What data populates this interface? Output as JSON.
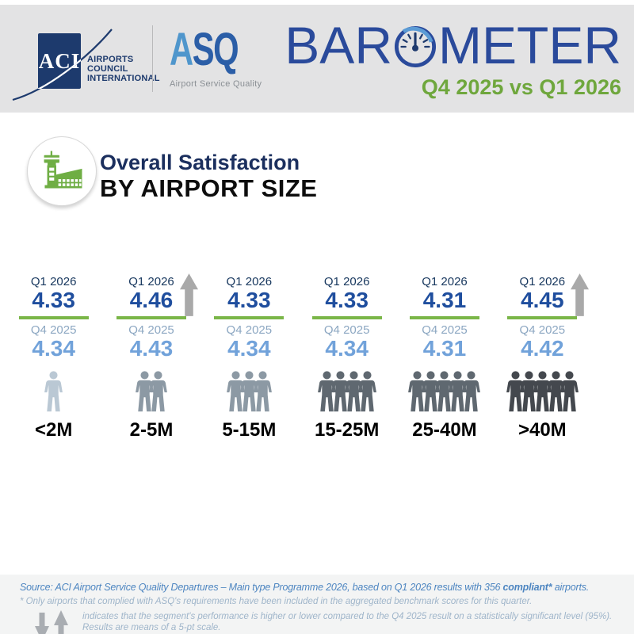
{
  "header": {
    "aci_logo": {
      "acronym": "ACI",
      "lines": [
        "AIRPORTS",
        "COUNCIL",
        "INTERNATIONAL"
      ]
    },
    "asq_logo": {
      "letter_a": "A",
      "letters_sq": "SQ",
      "tagline": "Airport Service Quality"
    },
    "title_prefix": "BAR",
    "title_suffix": "METER",
    "subtitle": "Q4 2025 vs Q1 2026"
  },
  "section": {
    "title_line1": "Overall Satisfaction",
    "title_line2": "BY AIRPORT SIZE"
  },
  "chart_data": {
    "type": "table",
    "title": "Overall Satisfaction BY AIRPORT SIZE",
    "comparison": "Q4 2025 vs Q1 2026",
    "categories": [
      "<2M",
      "2-5M",
      "5-15M",
      "15-25M",
      "25-40M",
      ">40M"
    ],
    "series": [
      {
        "name": "Q1 2026",
        "values": [
          4.33,
          4.46,
          4.33,
          4.33,
          4.31,
          4.45
        ]
      },
      {
        "name": "Q4 2025",
        "values": [
          4.34,
          4.43,
          4.34,
          4.34,
          4.31,
          4.42
        ]
      }
    ],
    "significant_up": [
      false,
      true,
      false,
      false,
      false,
      true
    ],
    "people_counts": [
      1,
      2,
      3,
      4,
      5,
      5
    ],
    "people_colors": [
      "#bac8d4",
      "#8c99a4",
      "#8c99a4",
      "#5f6870",
      "#5f6870",
      "#44484e"
    ],
    "scale": "5-pt scale, means",
    "axis": "none (pictogram comparison table)"
  },
  "footer": {
    "source_prefix": "Source: ACI Airport Service Quality Departures – Main type Programme 2026, based on Q1 2026 results with 356 ",
    "source_bold": "compliant*",
    "source_suffix": " airports.",
    "note1": "* Only airports that complied with ASQ's requirements have been included in the aggregated benchmark scores for this quarter.",
    "note2": "indicates that the segment's performance is higher or lower compared to the Q4 2025 result on a statistically significant level (95%).",
    "note3": "Results are means of a 5-pt scale."
  },
  "icons": {
    "gauge-icon": "barometer dial replacing the O of BAROMETER",
    "airport-tower-icon": "green control tower and terminal in white circle",
    "person-icon": "passenger pictogram ●/■ silhouette",
    "significant-up-arrow-icon": "⬆ gray",
    "legend-down-arrow-icon": "⬇ gray",
    "legend-up-arrow-icon": "⬆ gray"
  },
  "colors": {
    "header_band": "#e3e3e4",
    "navy": "#1d3a6d",
    "barometer_blue": "#2a4a9b",
    "green_text": "#6fa73d",
    "green_line": "#7ab648",
    "q1_value": "#1f4e9e",
    "q4_value": "#71a2da",
    "arrow": "#a9a9a9",
    "footer_source": "#4e86c1",
    "footer_notes": "#9fb5ca"
  }
}
